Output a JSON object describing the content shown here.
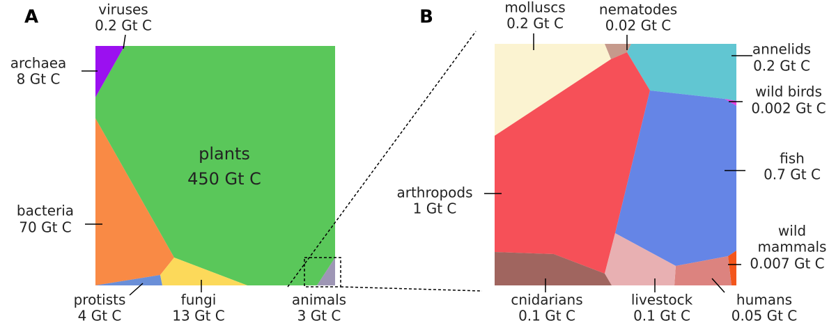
{
  "panels": [
    {
      "label": "A",
      "cells": [
        {
          "name": "viruses",
          "amount": "0.2 Gt C",
          "color": "#9b10f0"
        },
        {
          "name": "archaea",
          "amount": "8 Gt C",
          "color": "#9b10f0"
        },
        {
          "name": "plants",
          "amount": "450 Gt C",
          "color": "#5ac75a"
        },
        {
          "name": "bacteria",
          "amount": "70 Gt C",
          "color": "#f98a45"
        },
        {
          "name": "protists",
          "amount": "4 Gt C",
          "color": "#6a8fd8"
        },
        {
          "name": "fungi",
          "amount": "13 Gt C",
          "color": "#fcd95a"
        },
        {
          "name": "animals",
          "amount": "3 Gt C",
          "color": "#9e96b5"
        }
      ]
    },
    {
      "label": "B",
      "cells": [
        {
          "name": "molluscs",
          "amount": "0.2 Gt C",
          "color": "#fbf3d1"
        },
        {
          "name": "nematodes",
          "amount": "0.02 Gt C",
          "color": "#c69a8c"
        },
        {
          "name": "annelids",
          "amount": "0.2 Gt C",
          "color": "#61c6d2"
        },
        {
          "name": "wild birds",
          "amount": "0.002 Gt C",
          "color": "#e640e0"
        },
        {
          "name": "arthropods",
          "amount": "1 Gt C",
          "color": "#f65058"
        },
        {
          "name": "fish",
          "amount": "0.7 Gt C",
          "color": "#6585e6"
        },
        {
          "name_lines": [
            "wild",
            "mammals"
          ],
          "amount": "0.007 Gt C",
          "color": "#f3561c"
        },
        {
          "name": "humans",
          "amount": "0.05 Gt C",
          "color": "#dc837f"
        },
        {
          "name": "livestock",
          "amount": "0.1 Gt C",
          "color": "#e8b0b2"
        },
        {
          "name": "cnidarians",
          "amount": "0.1 Gt C",
          "color": "#a0655f"
        }
      ]
    }
  ]
}
